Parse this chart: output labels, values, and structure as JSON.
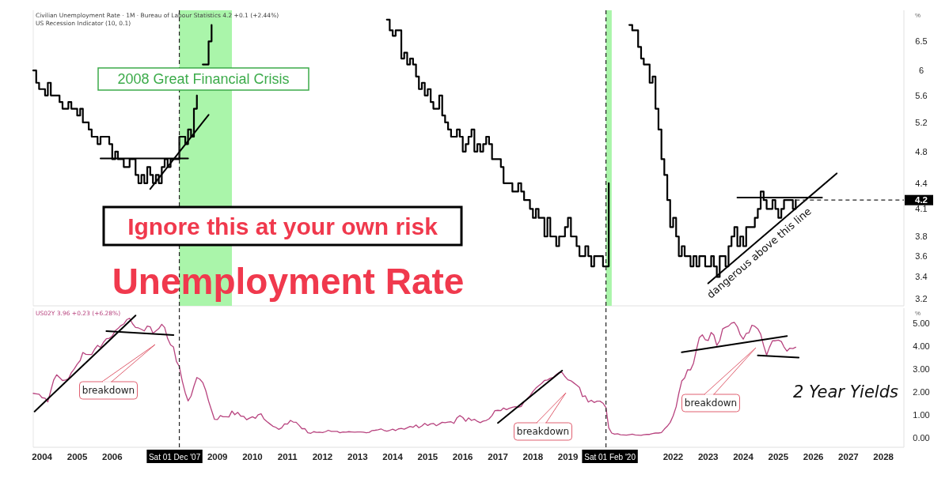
{
  "chart_data": [
    {
      "type": "step",
      "title": "Unemployment Rate",
      "ylabel": "%",
      "log": true,
      "grid": false,
      "tick_labels": "y",
      "xlim": [
        "2003-10-01",
        "2028-08-01"
      ],
      "ylim": [
        3.14,
        7.08
      ],
      "yticks": [
        3.2,
        3.4,
        3.6,
        3.8,
        4.1,
        4.4,
        4.8,
        5.2,
        5.6,
        6,
        6.5
      ],
      "annotations": [
        "Civilian Unemployment Rate · 1M · Bureau of Labour Statistics  4.2  +0.1 (+2.44%)",
        "US Recession Indicator (10, 0.1)",
        "2008 Great Financial Crisis",
        "Ignore this at your own risk",
        "dangerous above this line"
      ],
      "bands": [
        {
          "axis": "x",
          "from": "2007-12-01",
          "to": "2009-06-01",
          "color": "#aaf5aa"
        },
        {
          "axis": "x",
          "from": "2020-02-01",
          "to": "2020-04-01",
          "color": "#aaf5aa"
        }
      ],
      "ref_lines": [
        {
          "axis": "x",
          "value": "2007-12-01",
          "line_style": "dashed",
          "color": "#222222"
        },
        {
          "axis": "x",
          "value": "2020-02-01",
          "line_style": "dashed",
          "color": "#222222"
        },
        {
          "axis": "y",
          "value": 4.2,
          "label": "4.2",
          "line_style": "dashed",
          "color": "#222222"
        }
      ],
      "x": [
        "2003-10",
        "2003-11",
        "2003-12",
        "2004-01",
        "2004-02",
        "2004-03",
        "2004-04",
        "2004-05",
        "2004-06",
        "2004-07",
        "2004-08",
        "2004-09",
        "2004-10",
        "2004-11",
        "2004-12",
        "2005-01",
        "2005-02",
        "2005-03",
        "2005-04",
        "2005-05",
        "2005-06",
        "2005-07",
        "2005-08",
        "2005-09",
        "2005-10",
        "2005-11",
        "2005-12",
        "2006-01",
        "2006-02",
        "2006-03",
        "2006-04",
        "2006-05",
        "2006-06",
        "2006-07",
        "2006-08",
        "2006-09",
        "2006-10",
        "2006-11",
        "2006-12",
        "2007-01",
        "2007-02",
        "2007-03",
        "2007-04",
        "2007-05",
        "2007-06",
        "2007-07",
        "2007-08",
        "2007-09",
        "2007-10",
        "2007-11",
        "2007-12",
        "2008-01",
        "2008-02",
        "2008-03",
        "2008-04",
        "2008-05",
        "2008-06",
        "2008-07",
        "2008-08",
        "2008-09",
        "2008-10",
        "2008-11",
        "2008-12",
        "2009-01",
        "2009-02",
        "2009-03",
        "2009-04",
        "2009-05",
        "2009-06",
        "2009-07",
        "2009-08",
        "2009-09",
        "2009-10",
        "2009-11",
        "2009-12",
        "2010-01",
        "2010-02",
        "2010-03",
        "2010-04",
        "2010-05",
        "2010-06",
        "2010-07",
        "2010-08",
        "2010-09",
        "2010-10",
        "2010-11",
        "2010-12",
        "2011-01",
        "2011-02",
        "2011-03",
        "2011-04",
        "2011-05",
        "2011-06",
        "2011-07",
        "2011-08",
        "2011-09",
        "2011-10",
        "2011-11",
        "2011-12",
        "2012-01",
        "2012-02",
        "2012-03",
        "2012-04",
        "2012-05",
        "2012-06",
        "2012-07",
        "2012-08",
        "2012-09",
        "2012-10",
        "2012-11",
        "2012-12",
        "2013-01",
        "2013-02",
        "2013-03",
        "2013-04",
        "2013-05",
        "2013-06",
        "2013-07",
        "2013-08",
        "2013-09",
        "2013-10",
        "2013-11",
        "2013-12",
        "2014-01",
        "2014-02",
        "2014-03",
        "2014-04",
        "2014-05",
        "2014-06",
        "2014-07",
        "2014-08",
        "2014-09",
        "2014-10",
        "2014-11",
        "2014-12",
        "2015-01",
        "2015-02",
        "2015-03",
        "2015-04",
        "2015-05",
        "2015-06",
        "2015-07",
        "2015-08",
        "2015-09",
        "2015-10",
        "2015-11",
        "2015-12",
        "2016-01",
        "2016-02",
        "2016-03",
        "2016-04",
        "2016-05",
        "2016-06",
        "2016-07",
        "2016-08",
        "2016-09",
        "2016-10",
        "2016-11",
        "2016-12",
        "2017-01",
        "2017-02",
        "2017-03",
        "2017-04",
        "2017-05",
        "2017-06",
        "2017-07",
        "2017-08",
        "2017-09",
        "2017-10",
        "2017-11",
        "2017-12",
        "2018-01",
        "2018-02",
        "2018-03",
        "2018-04",
        "2018-05",
        "2018-06",
        "2018-07",
        "2018-08",
        "2018-09",
        "2018-10",
        "2018-11",
        "2018-12",
        "2019-01",
        "2019-02",
        "2019-03",
        "2019-04",
        "2019-05",
        "2019-06",
        "2019-07",
        "2019-08",
        "2019-09",
        "2019-10",
        "2019-11",
        "2019-12",
        "2020-01",
        "2020-02",
        "2020-03",
        "2020-04",
        "2020-05",
        "2020-06",
        "2020-07",
        "2020-08",
        "2020-09",
        "2020-10",
        "2020-11",
        "2020-12",
        "2021-01",
        "2021-02",
        "2021-03",
        "2021-04",
        "2021-05",
        "2021-06",
        "2021-07",
        "2021-08",
        "2021-09",
        "2021-10",
        "2021-11",
        "2021-12",
        "2022-01",
        "2022-02",
        "2022-03",
        "2022-04",
        "2022-05",
        "2022-06",
        "2022-07",
        "2022-08",
        "2022-09",
        "2022-10",
        "2022-11",
        "2022-12",
        "2023-01",
        "2023-02",
        "2023-03",
        "2023-04",
        "2023-05",
        "2023-06",
        "2023-07",
        "2023-08",
        "2023-09",
        "2023-10",
        "2023-11",
        "2023-12",
        "2024-01",
        "2024-02",
        "2024-03",
        "2024-04",
        "2024-05",
        "2024-06",
        "2024-07",
        "2024-08",
        "2024-09",
        "2024-10",
        "2024-11",
        "2024-12",
        "2025-01",
        "2025-02",
        "2025-03",
        "2025-04",
        "2025-05",
        "2025-06",
        "2025-07"
      ],
      "series": [
        {
          "color": "#000000",
          "values": [
            6.0,
            5.8,
            5.7,
            5.7,
            5.6,
            5.8,
            5.6,
            5.6,
            5.6,
            5.5,
            5.4,
            5.4,
            5.5,
            5.4,
            5.4,
            5.3,
            5.4,
            5.2,
            5.2,
            5.1,
            5.0,
            5.0,
            4.9,
            5.0,
            5.0,
            5.0,
            4.9,
            4.7,
            4.8,
            4.7,
            4.7,
            4.6,
            4.6,
            4.7,
            4.7,
            4.5,
            4.4,
            4.5,
            4.4,
            4.6,
            4.5,
            4.4,
            4.5,
            4.4,
            4.6,
            4.7,
            4.6,
            4.7,
            4.7,
            4.7,
            5.0,
            5.0,
            4.9,
            5.1,
            5.0,
            5.4,
            5.6,
            null,
            6.1,
            6.1,
            6.5,
            6.8,
            null,
            null,
            null,
            null,
            null,
            null,
            null,
            null,
            null,
            null,
            null,
            null,
            null,
            null,
            null,
            null,
            null,
            null,
            null,
            null,
            null,
            null,
            null,
            null,
            null,
            null,
            null,
            null,
            null,
            null,
            null,
            null,
            null,
            null,
            null,
            null,
            null,
            null,
            null,
            null,
            null,
            null,
            null,
            null,
            null,
            null,
            null,
            null,
            null,
            null,
            null,
            null,
            null,
            null,
            null,
            null,
            null,
            null,
            null,
            6.9,
            6.7,
            6.6,
            6.7,
            6.7,
            6.2,
            6.3,
            6.1,
            6.2,
            6.1,
            5.9,
            5.7,
            5.8,
            5.6,
            5.7,
            5.5,
            5.4,
            5.4,
            5.6,
            5.3,
            5.2,
            5.1,
            5.0,
            5.0,
            5.1,
            5.0,
            4.8,
            4.9,
            5.0,
            5.1,
            4.8,
            4.9,
            4.8,
            4.9,
            5.0,
            4.9,
            4.7,
            4.7,
            4.7,
            4.6,
            4.4,
            4.4,
            4.4,
            4.3,
            4.3,
            4.4,
            4.3,
            4.2,
            4.2,
            4.1,
            4.0,
            4.1,
            4.0,
            4.0,
            3.8,
            4.0,
            3.8,
            3.8,
            3.7,
            3.8,
            3.8,
            3.9,
            4.0,
            3.8,
            3.8,
            3.7,
            3.6,
            3.6,
            3.7,
            3.6,
            3.5,
            3.6,
            3.6,
            3.6,
            3.5,
            3.5,
            4.4,
            null,
            null,
            null,
            null,
            null,
            null,
            6.8,
            6.7,
            6.7,
            6.4,
            6.2,
            6.1,
            6.1,
            5.8,
            5.9,
            5.4,
            5.1,
            4.7,
            4.5,
            4.2,
            3.9,
            4.0,
            3.8,
            3.6,
            3.7,
            3.6,
            3.6,
            3.5,
            3.6,
            3.5,
            3.6,
            3.6,
            3.5,
            3.5,
            3.6,
            3.5,
            3.4,
            3.6,
            3.6,
            3.5,
            3.7,
            3.8,
            3.9,
            3.7,
            3.8,
            3.7,
            3.9,
            3.9,
            3.9,
            4.0,
            4.1,
            4.3,
            4.2,
            4.1,
            4.1,
            4.2,
            4.1,
            4.0,
            4.1,
            4.2,
            4.2,
            4.2,
            4.1,
            4.2
          ]
        },
        {
          "type": "line",
          "color": "#000000",
          "x": [
            "2005-09",
            "2008-03"
          ],
          "values": [
            4.71,
            4.71
          ]
        },
        {
          "type": "line",
          "color": "#000000",
          "x": [
            "2007-02",
            "2008-10"
          ],
          "values": [
            4.33,
            5.31
          ]
        },
        {
          "type": "line",
          "color": "#000000",
          "x": [
            "2023-11",
            "2026-04"
          ],
          "values": [
            4.23,
            4.23
          ]
        },
        {
          "type": "line",
          "color": "#000000",
          "x": [
            "2023-01",
            "2026-09"
          ],
          "values": [
            3.34,
            4.52
          ]
        }
      ]
    },
    {
      "type": "line",
      "ylabel": "%",
      "grid": false,
      "xlim": [
        "2003-10-01",
        "2028-08-01"
      ],
      "ylim": [
        -0.4,
        5.66
      ],
      "yticks": [
        {
          "value": 0,
          "label": "0.00"
        },
        {
          "value": 1,
          "label": "1.00"
        },
        {
          "value": 2,
          "label": "2.00"
        },
        {
          "value": 3,
          "label": "3.00"
        },
        {
          "value": 4,
          "label": "4.00"
        },
        {
          "value": 5,
          "label": "5.00"
        }
      ],
      "xticks": [
        "2004",
        "2005",
        "2006",
        "2009",
        "2010",
        "2011",
        "2012",
        "2013",
        "2014",
        "2015",
        "2016",
        "2017",
        "2018",
        "2019",
        "2022",
        "2023",
        "2024",
        "2025",
        "2026",
        "2027",
        "2028"
      ],
      "annotations": [
        "US02Y  3.96  +0.23 (+6.28%)",
        "breakdown",
        "breakdown",
        "breakdown",
        "2 Year Yields"
      ],
      "ref_lines": [
        {
          "axis": "x",
          "value": "2007-12-01",
          "label": "Sat 01 Dec '07",
          "line_style": "dashed",
          "color": "#222222"
        },
        {
          "axis": "x",
          "value": "2020-02-01",
          "label": "Sat 01 Feb '20",
          "line_style": "dashed",
          "color": "#222222"
        }
      ],
      "x": [
        "2003-10",
        "2003-11",
        "2003-12",
        "2004-01",
        "2004-02",
        "2004-03",
        "2004-04",
        "2004-05",
        "2004-06",
        "2004-07",
        "2004-08",
        "2004-09",
        "2004-10",
        "2004-11",
        "2004-12",
        "2005-01",
        "2005-02",
        "2005-03",
        "2005-04",
        "2005-05",
        "2005-06",
        "2005-07",
        "2005-08",
        "2005-09",
        "2005-10",
        "2005-11",
        "2005-12",
        "2006-01",
        "2006-02",
        "2006-03",
        "2006-04",
        "2006-05",
        "2006-06",
        "2006-07",
        "2006-08",
        "2006-09",
        "2006-10",
        "2006-11",
        "2006-12",
        "2007-01",
        "2007-02",
        "2007-03",
        "2007-04",
        "2007-05",
        "2007-06",
        "2007-07",
        "2007-08",
        "2007-09",
        "2007-10",
        "2007-11",
        "2007-12",
        "2008-01",
        "2008-02",
        "2008-03",
        "2008-04",
        "2008-05",
        "2008-06",
        "2008-07",
        "2008-08",
        "2008-09",
        "2008-10",
        "2008-11",
        "2008-12",
        "2009-01",
        "2009-02",
        "2009-03",
        "2009-04",
        "2009-05",
        "2009-06",
        "2009-07",
        "2009-08",
        "2009-09",
        "2009-10",
        "2009-11",
        "2009-12",
        "2010-01",
        "2010-02",
        "2010-03",
        "2010-04",
        "2010-05",
        "2010-06",
        "2010-07",
        "2010-08",
        "2010-09",
        "2010-10",
        "2010-11",
        "2010-12",
        "2011-01",
        "2011-02",
        "2011-03",
        "2011-04",
        "2011-05",
        "2011-06",
        "2011-07",
        "2011-08",
        "2011-09",
        "2011-10",
        "2011-11",
        "2011-12",
        "2012-01",
        "2012-02",
        "2012-03",
        "2012-04",
        "2012-05",
        "2012-06",
        "2012-07",
        "2012-08",
        "2012-09",
        "2012-10",
        "2012-11",
        "2012-12",
        "2013-01",
        "2013-02",
        "2013-03",
        "2013-04",
        "2013-05",
        "2013-06",
        "2013-07",
        "2013-08",
        "2013-09",
        "2013-10",
        "2013-11",
        "2013-12",
        "2014-01",
        "2014-02",
        "2014-03",
        "2014-04",
        "2014-05",
        "2014-06",
        "2014-07",
        "2014-08",
        "2014-09",
        "2014-10",
        "2014-11",
        "2014-12",
        "2015-01",
        "2015-02",
        "2015-03",
        "2015-04",
        "2015-05",
        "2015-06",
        "2015-07",
        "2015-08",
        "2015-09",
        "2015-10",
        "2015-11",
        "2015-12",
        "2016-01",
        "2016-02",
        "2016-03",
        "2016-04",
        "2016-05",
        "2016-06",
        "2016-07",
        "2016-08",
        "2016-09",
        "2016-10",
        "2016-11",
        "2016-12",
        "2017-01",
        "2017-02",
        "2017-03",
        "2017-04",
        "2017-05",
        "2017-06",
        "2017-07",
        "2017-08",
        "2017-09",
        "2017-10",
        "2017-11",
        "2017-12",
        "2018-01",
        "2018-02",
        "2018-03",
        "2018-04",
        "2018-05",
        "2018-06",
        "2018-07",
        "2018-08",
        "2018-09",
        "2018-10",
        "2018-11",
        "2018-12",
        "2019-01",
        "2019-02",
        "2019-03",
        "2019-04",
        "2019-05",
        "2019-06",
        "2019-07",
        "2019-08",
        "2019-09",
        "2019-10",
        "2019-11",
        "2019-12",
        "2020-01",
        "2020-02",
        "2020-03",
        "2020-04",
        "2020-05",
        "2020-06",
        "2020-07",
        "2020-08",
        "2020-09",
        "2020-10",
        "2020-11",
        "2020-12",
        "2021-01",
        "2021-02",
        "2021-03",
        "2021-04",
        "2021-05",
        "2021-06",
        "2021-07",
        "2021-08",
        "2021-09",
        "2021-10",
        "2021-11",
        "2021-12",
        "2022-01",
        "2022-02",
        "2022-03",
        "2022-04",
        "2022-05",
        "2022-06",
        "2022-07",
        "2022-08",
        "2022-09",
        "2022-10",
        "2022-11",
        "2022-12",
        "2023-01",
        "2023-02",
        "2023-03",
        "2023-04",
        "2023-05",
        "2023-06",
        "2023-07",
        "2023-08",
        "2023-09",
        "2023-10",
        "2023-11",
        "2023-12",
        "2024-01",
        "2024-02",
        "2024-03",
        "2024-04",
        "2024-05",
        "2024-06",
        "2024-07",
        "2024-08",
        "2024-09",
        "2024-10",
        "2024-11",
        "2024-12",
        "2025-01",
        "2025-02",
        "2025-03",
        "2025-04",
        "2025-05",
        "2025-06",
        "2025-07"
      ],
      "series": [
        {
          "color": "#b8447f",
          "values": [
            1.95,
            1.93,
            1.91,
            1.76,
            1.74,
            1.58,
            2.07,
            2.53,
            2.76,
            2.64,
            2.51,
            2.53,
            2.58,
            2.85,
            3.01,
            3.22,
            3.38,
            3.73,
            3.65,
            3.64,
            3.64,
            3.87,
            4.04,
            3.95,
            4.17,
            4.33,
            4.35,
            4.45,
            4.68,
            4.77,
            4.9,
            4.97,
            5.16,
            5.22,
            4.98,
            4.82,
            4.8,
            4.74,
            4.67,
            4.88,
            4.85,
            4.57,
            4.67,
            4.77,
            4.96,
            4.82,
            4.34,
            4.06,
            3.97,
            3.34,
            3.12,
            2.48,
            1.97,
            1.62,
            1.83,
            2.26,
            2.64,
            2.57,
            2.42,
            2.08,
            1.61,
            1.21,
            0.82,
            0.81,
            0.98,
            0.93,
            0.93,
            0.92,
            1.18,
            1.02,
            1.12,
            0.96,
            0.95,
            0.8,
            0.87,
            0.93,
            0.86,
            1.02,
            1.06,
            0.83,
            0.72,
            0.62,
            0.52,
            0.47,
            0.38,
            0.45,
            0.62,
            0.61,
            0.77,
            0.7,
            0.69,
            0.56,
            0.41,
            0.41,
            0.23,
            0.21,
            0.28,
            0.25,
            0.26,
            0.24,
            0.28,
            0.34,
            0.29,
            0.29,
            0.29,
            0.23,
            0.27,
            0.26,
            0.28,
            0.27,
            0.26,
            0.27,
            0.27,
            0.26,
            0.23,
            0.25,
            0.33,
            0.34,
            0.36,
            0.4,
            0.34,
            0.3,
            0.34,
            0.39,
            0.33,
            0.4,
            0.42,
            0.39,
            0.45,
            0.51,
            0.47,
            0.57,
            0.45,
            0.53,
            0.64,
            0.55,
            0.62,
            0.64,
            0.54,
            0.61,
            0.69,
            0.67,
            0.7,
            0.71,
            0.64,
            0.88,
            0.98,
            0.9,
            0.73,
            0.88,
            0.77,
            0.82,
            0.73,
            0.67,
            0.74,
            0.77,
            0.84,
            0.98,
            1.2,
            1.21,
            1.2,
            1.31,
            1.24,
            1.3,
            1.34,
            1.37,
            1.34,
            1.38,
            1.58,
            1.7,
            1.84,
            2.03,
            2.18,
            2.28,
            2.38,
            2.51,
            2.53,
            2.61,
            2.64,
            2.77,
            2.86,
            2.86,
            2.68,
            2.54,
            2.5,
            2.41,
            2.31,
            2.21,
            1.81,
            1.84,
            1.57,
            1.65,
            1.55,
            1.61,
            1.61,
            1.52,
            1.33,
            0.45,
            0.22,
            0.17,
            0.19,
            0.15,
            0.14,
            0.13,
            0.15,
            0.17,
            0.14,
            0.13,
            0.12,
            0.15,
            0.16,
            0.16,
            0.2,
            0.22,
            0.22,
            0.24,
            0.39,
            0.52,
            0.68,
            0.97,
            1.36,
            1.95,
            2.49,
            2.62,
            2.98,
            2.97,
            3.26,
            3.86,
            4.38,
            4.5,
            4.29,
            4.25,
            4.6,
            4.49,
            4.04,
            4.24,
            4.76,
            4.83,
            4.88,
            5.01,
            5.04,
            4.85,
            4.5,
            4.31,
            4.56,
            4.59,
            4.92,
            4.87,
            4.76,
            4.53,
            4.03,
            3.62,
            3.96,
            4.24,
            4.24,
            4.27,
            4.21,
            3.97,
            3.79,
            3.92,
            3.9,
            3.96
          ]
        },
        {
          "color": "#000000",
          "x": [
            "2003-10-15",
            "2006-09"
          ],
          "values": [
            1.16,
            5.34
          ]
        },
        {
          "color": "#000000",
          "x": [
            "2005-11",
            "2007-10"
          ],
          "values": [
            4.66,
            4.49
          ]
        },
        {
          "color": "#000000",
          "x": [
            "2017-01",
            "2018-11"
          ],
          "values": [
            0.66,
            2.94
          ]
        },
        {
          "color": "#000000",
          "x": [
            "2022-04",
            "2025-04"
          ],
          "values": [
            3.74,
            4.45
          ]
        },
        {
          "color": "#000000",
          "x": [
            "2024-06",
            "2025-08"
          ],
          "values": [
            3.6,
            3.51
          ]
        }
      ]
    }
  ]
}
